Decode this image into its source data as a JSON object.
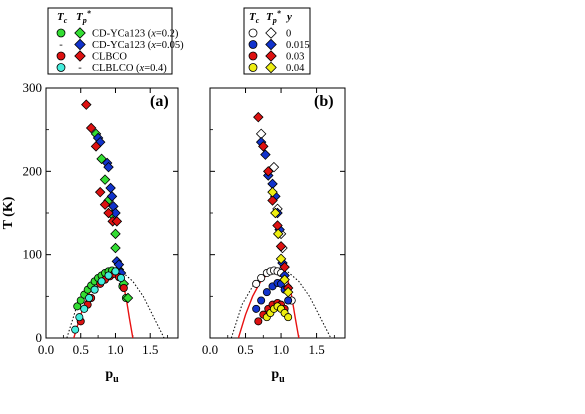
{
  "chart_data": [
    {
      "type": "scatter",
      "panel": "(a)",
      "xlabel": "p",
      "xlabel_sub": "u",
      "ylabel": "T (K)",
      "xlim": [
        0.0,
        1.9
      ],
      "ylim": [
        0,
        300
      ],
      "x_ticks": [
        "0.0",
        "0.5",
        "1.0",
        "1.5"
      ],
      "y_ticks": [
        "0",
        "100",
        "200",
        "300"
      ],
      "legend": {
        "headers": [
          "T",
          "T"
        ],
        "header_subs": [
          "c",
          "p"
        ],
        "header_sup": "*",
        "entries": [
          {
            "label": "CD-YCa123 (",
            "x_label": "x",
            "suffix": "=0.2)",
            "tc": true,
            "tp": true,
            "color": "#33dd33"
          },
          {
            "label": "CD-YCa123 (",
            "x_label": "x",
            "suffix": "=0.05)",
            "tc": false,
            "tp": true,
            "color": "#1133cc"
          },
          {
            "label": "CLBCO",
            "x_label": "",
            "suffix": "",
            "tc": true,
            "tp": true,
            "color": "#dd1111"
          },
          {
            "label": "CLBLCO (",
            "x_label": "x",
            "suffix": "=0.4)",
            "tc": true,
            "tp": false,
            "color": "#44eedd"
          }
        ],
        "placeholder": "-"
      },
      "curves": [
        {
          "style": "solid",
          "color": "#e81111",
          "x": [
            0.4,
            0.5,
            0.6,
            0.7,
            0.8,
            0.9,
            1.0,
            1.05,
            1.1,
            1.15,
            1.2,
            1.25
          ],
          "y": [
            0,
            28,
            50,
            66,
            76,
            81,
            82,
            78,
            68,
            50,
            24,
            0
          ]
        },
        {
          "style": "dotted",
          "color": "#000000",
          "x": [
            0.3,
            0.45,
            0.6,
            0.75,
            0.9,
            1.0,
            1.1,
            1.25,
            1.4,
            1.55,
            1.7
          ],
          "y": [
            0,
            40,
            62,
            76,
            82,
            82,
            79,
            68,
            50,
            25,
            0
          ]
        }
      ],
      "series": [
        {
          "name": "CD-YCa123 (x=0.2) Tc",
          "marker": "circle",
          "color": "#33dd33",
          "x": [
            0.45,
            0.5,
            0.55,
            0.6,
            0.65,
            0.7,
            0.75,
            0.8,
            0.85,
            0.9,
            0.95,
            1.0,
            1.05,
            1.1,
            1.15
          ],
          "y": [
            38,
            45,
            52,
            58,
            63,
            68,
            72,
            75,
            78,
            80,
            81,
            80,
            75,
            62,
            48
          ]
        },
        {
          "name": "CD-YCa123 (x=0.2) Tp*",
          "marker": "diamond",
          "color": "#33dd33",
          "x": [
            0.72,
            0.8,
            0.85,
            0.9,
            0.95,
            1.0,
            1.0,
            1.05,
            1.12,
            1.18
          ],
          "y": [
            245,
            215,
            190,
            165,
            148,
            125,
            108,
            82,
            65,
            48
          ]
        },
        {
          "name": "CD-YCa123 (x=0.05) Tp*",
          "marker": "diamond",
          "color": "#1133cc",
          "x": [
            0.75,
            0.78,
            0.88,
            0.9,
            0.93,
            0.95,
            0.97,
            1.0,
            1.02,
            1.05,
            1.08
          ],
          "y": [
            240,
            235,
            210,
            205,
            180,
            170,
            158,
            150,
            92,
            88,
            78
          ]
        },
        {
          "name": "CLBCO Tc",
          "marker": "circle",
          "color": "#dd1111",
          "x": [
            0.5,
            0.6,
            0.65,
            0.7,
            0.78,
            0.85,
            0.92,
            0.98,
            1.05,
            1.12
          ],
          "y": [
            20,
            40,
            48,
            58,
            65,
            70,
            74,
            77,
            73,
            60
          ]
        },
        {
          "name": "CLBCO Tp*",
          "marker": "diamond",
          "color": "#dd1111",
          "x": [
            0.58,
            0.65,
            0.72,
            0.78,
            0.85,
            0.9,
            0.96,
            1.02
          ],
          "y": [
            280,
            252,
            230,
            175,
            160,
            150,
            140,
            140
          ]
        },
        {
          "name": "CLBLCO (x=0.4) Tc",
          "marker": "circle",
          "color": "#44eedd",
          "x": [
            0.42,
            0.48,
            0.55,
            0.62,
            0.7,
            0.8,
            0.9,
            1.0,
            1.08
          ],
          "y": [
            10,
            25,
            35,
            48,
            58,
            68,
            75,
            80,
            72
          ]
        }
      ]
    },
    {
      "type": "scatter",
      "panel": "(b)",
      "xlabel": "p",
      "xlabel_sub": "u",
      "xlim": [
        0.0,
        1.9
      ],
      "ylim": [
        0,
        300
      ],
      "x_ticks": [
        "0.0",
        "0.5",
        "1.0",
        "1.5"
      ],
      "legend": {
        "headers": [
          "T",
          "T",
          "y"
        ],
        "header_subs": [
          "c",
          "p",
          ""
        ],
        "header_sup": "*",
        "entries": [
          {
            "label": "0",
            "color": "#ffffff"
          },
          {
            "label": "0.015",
            "color": "#1133cc"
          },
          {
            "label": "0.03",
            "color": "#dd1111"
          },
          {
            "label": "0.04",
            "color": "#eeee11"
          }
        ]
      },
      "curves": [
        {
          "style": "solid",
          "color": "#e81111",
          "x": [
            0.4,
            0.5,
            0.6,
            0.7,
            0.8,
            0.9,
            1.0,
            1.05,
            1.1,
            1.15,
            1.2,
            1.25
          ],
          "y": [
            0,
            28,
            50,
            66,
            76,
            81,
            82,
            78,
            68,
            50,
            24,
            0
          ]
        },
        {
          "style": "dotted",
          "color": "#000000",
          "x": [
            0.3,
            0.45,
            0.6,
            0.75,
            0.9,
            1.0,
            1.1,
            1.25,
            1.4,
            1.55,
            1.7
          ],
          "y": [
            0,
            40,
            62,
            76,
            82,
            82,
            79,
            68,
            50,
            25,
            0
          ]
        }
      ],
      "series": [
        {
          "name": "y=0 Tc",
          "marker": "circle",
          "color": "#ffffff",
          "x": [
            0.65,
            0.72,
            0.8,
            0.85,
            0.9,
            0.95,
            1.0,
            1.05,
            1.1,
            1.15
          ],
          "y": [
            65,
            72,
            78,
            80,
            81,
            80,
            78,
            70,
            60,
            45
          ]
        },
        {
          "name": "y=0 Tp*",
          "marker": "diamond",
          "color": "#ffffff",
          "x": [
            0.72,
            0.9,
            0.95,
            1.0,
            1.02
          ],
          "y": [
            245,
            205,
            155,
            125,
            108
          ]
        },
        {
          "name": "y=0.015 Tc",
          "marker": "circle",
          "color": "#1133cc",
          "x": [
            0.65,
            0.72,
            0.8,
            0.88,
            0.95,
            1.0,
            1.05,
            1.1
          ],
          "y": [
            35,
            45,
            55,
            62,
            66,
            65,
            58,
            45
          ]
        },
        {
          "name": "y=0.015 Tp*",
          "marker": "diamond",
          "color": "#1133cc",
          "x": [
            0.72,
            0.78,
            0.82,
            0.88,
            0.92,
            0.95,
            0.98,
            1.02,
            1.05
          ],
          "y": [
            235,
            220,
            195,
            185,
            170,
            150,
            130,
            90,
            75
          ]
        },
        {
          "name": "y=0.03 Tc",
          "marker": "circle",
          "color": "#dd1111",
          "x": [
            0.68,
            0.75,
            0.82,
            0.88,
            0.95,
            1.0,
            1.05
          ],
          "y": [
            20,
            28,
            35,
            40,
            42,
            40,
            35
          ]
        },
        {
          "name": "y=0.03 Tp*",
          "marker": "diamond",
          "color": "#dd1111",
          "x": [
            0.68,
            0.75,
            0.82,
            0.88,
            0.95,
            1.0,
            1.05,
            1.1
          ],
          "y": [
            265,
            230,
            200,
            165,
            135,
            110,
            85,
            60
          ]
        },
        {
          "name": "y=0.04 Tc",
          "marker": "circle",
          "color": "#eeee11",
          "x": [
            0.8,
            0.85,
            0.9,
            0.95,
            1.0,
            1.05,
            1.1
          ],
          "y": [
            25,
            30,
            35,
            38,
            35,
            30,
            25
          ]
        },
        {
          "name": "y=0.04 Tp*",
          "marker": "diamond",
          "color": "#eeee11",
          "x": [
            0.88,
            0.92,
            0.96,
            1.0,
            1.05,
            1.1
          ],
          "y": [
            175,
            150,
            125,
            95,
            70,
            55
          ]
        }
      ]
    }
  ]
}
